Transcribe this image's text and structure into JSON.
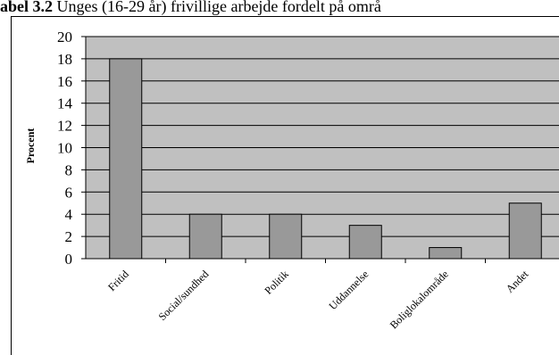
{
  "caption": {
    "lead": "abel 3.2",
    "rest": " Unges (16-29 år) frivillige arbejde fordelt på områ"
  },
  "chart_data": {
    "type": "bar",
    "title": "",
    "xlabel": "",
    "ylabel": "Procent",
    "categories": [
      "Fritid",
      "Social/sundhed",
      "Politik",
      "Uddannelse",
      "Boliglokalområde",
      "Andet"
    ],
    "values": [
      18,
      4,
      4,
      3,
      1,
      5
    ],
    "ylim": [
      0,
      20
    ],
    "yticks": [
      0,
      2,
      4,
      6,
      8,
      10,
      12,
      14,
      16,
      18,
      20
    ],
    "grid": true,
    "legend": "none",
    "colors": {
      "plot_background": "#c0c0c0",
      "bar_fill": "#999999",
      "bar_stroke": "#000000",
      "gridline": "#000000"
    }
  }
}
